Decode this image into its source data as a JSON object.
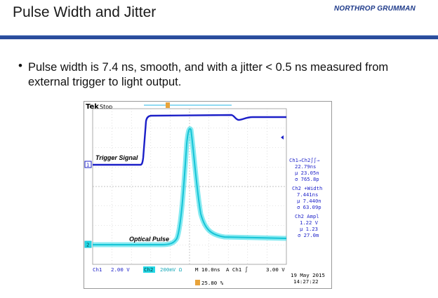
{
  "slide": {
    "title": "Pulse Width and Jitter",
    "logo": "NORTHROP GRUMMAN",
    "bullet": "Pulse width is 7.4 ns, smooth, and with a jitter < 0.5 ns measured from external trigger to light output."
  },
  "scope": {
    "brand": "Tek",
    "state": "Stop",
    "trigger_label": "Trigger Signal",
    "optical_label": "Optical Pulse",
    "ch1_marker": "1",
    "ch2_marker": "2",
    "trigger_marker": "T",
    "measurements": [
      {
        "line1": "Ch1→Ch2∫∫→",
        "line2": "22.79ns",
        "line3": "µ 23.05n",
        "line4": "σ 765.8p"
      },
      {
        "line1": "Ch2 +Width",
        "line2": "7.441ns",
        "line3": "µ 7.440n",
        "line4": "σ 63.09p"
      },
      {
        "line1": "Ch2 Ampl",
        "line2": "1.22 V",
        "line3": "µ 1.23",
        "line4": "σ 27.0m"
      }
    ],
    "status": {
      "ch1": "Ch1",
      "ch1_scale": "2.00 V",
      "ch2": "Ch2",
      "ch2_scale": "200mV Ω",
      "timebase": "M 10.0ns",
      "trig": "A  Ch1  ∫",
      "trig_level": "3.00 V",
      "trig_pos": "25.80 %",
      "date": "19 May 2015",
      "time": "14:27:22"
    },
    "colors": {
      "ch1": "#1b1fc8",
      "ch2": "#22d8e6",
      "grid": "#c8c8c8"
    }
  }
}
